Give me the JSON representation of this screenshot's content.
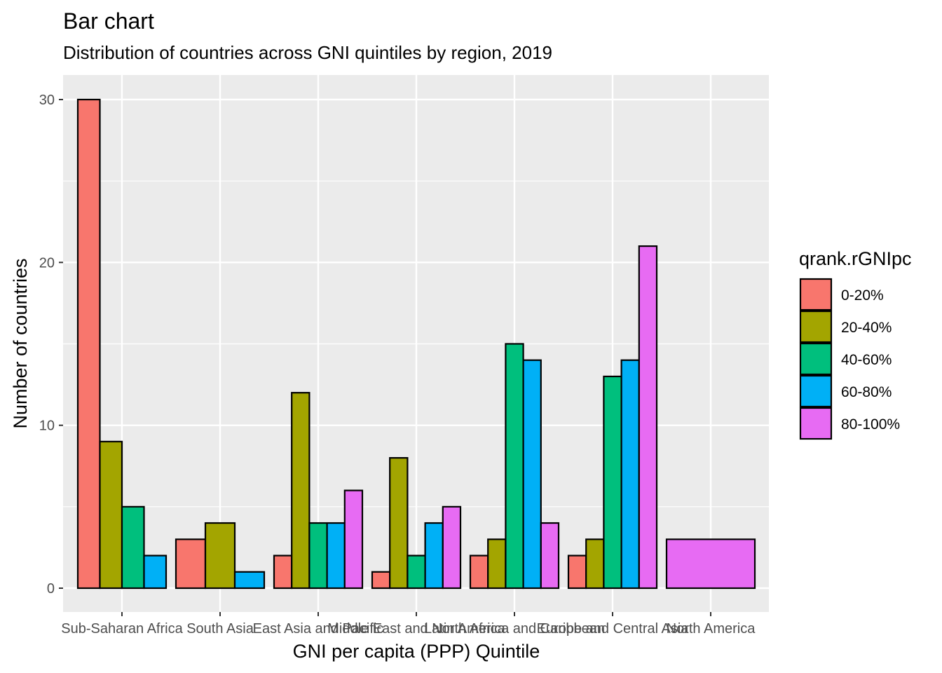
{
  "chart_data": {
    "type": "bar",
    "title": "Bar chart",
    "subtitle": "Distribution of countries across GNI quintiles by region, 2019",
    "xlabel": "GNI per capita (PPP) Quintile",
    "ylabel": "Number of countries",
    "ylim": [
      0,
      30
    ],
    "yticks": [
      0,
      10,
      20,
      30
    ],
    "grid": true,
    "legend_position": "right",
    "legend_title": "qrank.rGNIpc",
    "categories": [
      "Sub-Saharan Africa",
      "South Asia",
      "East Asia and Pacific",
      "Middle East and North Africa",
      "Latin America and Caribbean",
      "Europe and Central Asia",
      "North America"
    ],
    "series": [
      {
        "name": "0-20%",
        "color": "#F8766D",
        "values": [
          30,
          3,
          2,
          1,
          2,
          2,
          null
        ]
      },
      {
        "name": "20-40%",
        "color": "#A3A500",
        "values": [
          9,
          4,
          12,
          8,
          3,
          3,
          null
        ]
      },
      {
        "name": "40-60%",
        "color": "#00BF7D",
        "values": [
          5,
          null,
          4,
          2,
          15,
          13,
          null
        ]
      },
      {
        "name": "60-80%",
        "color": "#00B0F6",
        "values": [
          2,
          1,
          4,
          4,
          14,
          14,
          null
        ]
      },
      {
        "name": "80-100%",
        "color": "#E76BF3",
        "values": [
          null,
          null,
          6,
          5,
          4,
          21,
          3
        ]
      }
    ]
  }
}
